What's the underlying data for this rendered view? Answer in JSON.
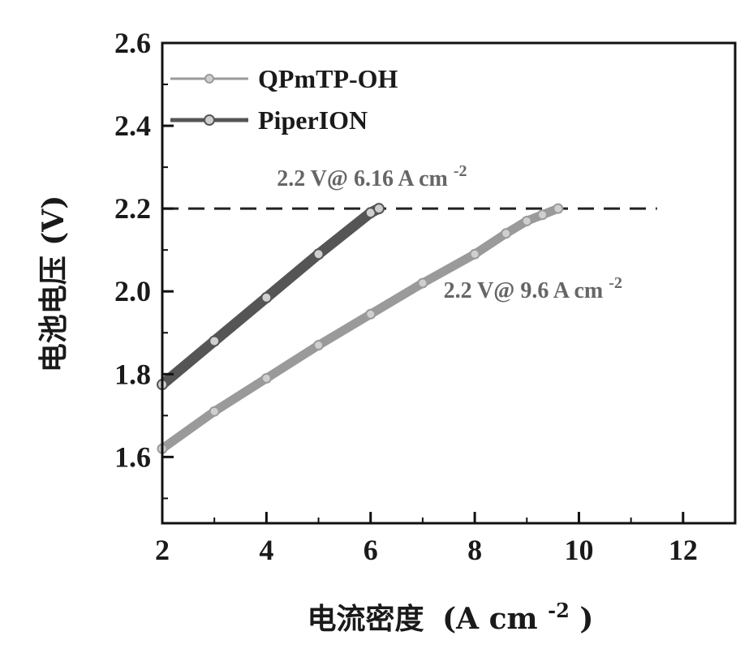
{
  "chart_data": {
    "type": "line",
    "xlabel_text": "电流密度",
    "xlabel_unit_base": "(A cm",
    "xlabel_unit_sup": "-2",
    "xlabel_unit_close": ")",
    "ylabel": "电池电压 (V)",
    "xlim": [
      2,
      13
    ],
    "ylim": [
      1.44,
      2.6
    ],
    "xticks": [
      "2",
      "4",
      "6",
      "8",
      "10",
      "12"
    ],
    "yticks": [
      "1.6",
      "1.8",
      "2.0",
      "2.2",
      "2.4",
      "2.6"
    ],
    "reference_line": {
      "y": 2.2,
      "x_range": [
        2,
        11.5
      ],
      "style": "dashed"
    },
    "legend_position": "top-left",
    "series": [
      {
        "name": "QPmTP-OH",
        "color": "#9a9a9a",
        "x": [
          2.0,
          3.0,
          4.0,
          5.0,
          6.0,
          7.0,
          8.0,
          8.6,
          9.0,
          9.3,
          9.6
        ],
        "y": [
          1.62,
          1.71,
          1.79,
          1.87,
          1.945,
          2.02,
          2.09,
          2.14,
          2.17,
          2.185,
          2.2
        ]
      },
      {
        "name": "PiperION",
        "color": "#555555",
        "x": [
          2.0,
          3.0,
          4.0,
          5.0,
          6.0,
          6.16
        ],
        "y": [
          1.775,
          1.88,
          1.985,
          2.09,
          2.19,
          2.2
        ]
      }
    ],
    "annotations": [
      {
        "label": "annotation-piperion",
        "text": "2.2 V@ 6.16 A cm",
        "sup": "-2",
        "anchor_x": 4.2,
        "anchor_y": 2.255
      },
      {
        "label": "annotation-qpmtp",
        "text": "2.2 V@ 9.6 A cm",
        "sup": "-2",
        "anchor_x": 7.4,
        "anchor_y": 1.985
      }
    ]
  }
}
